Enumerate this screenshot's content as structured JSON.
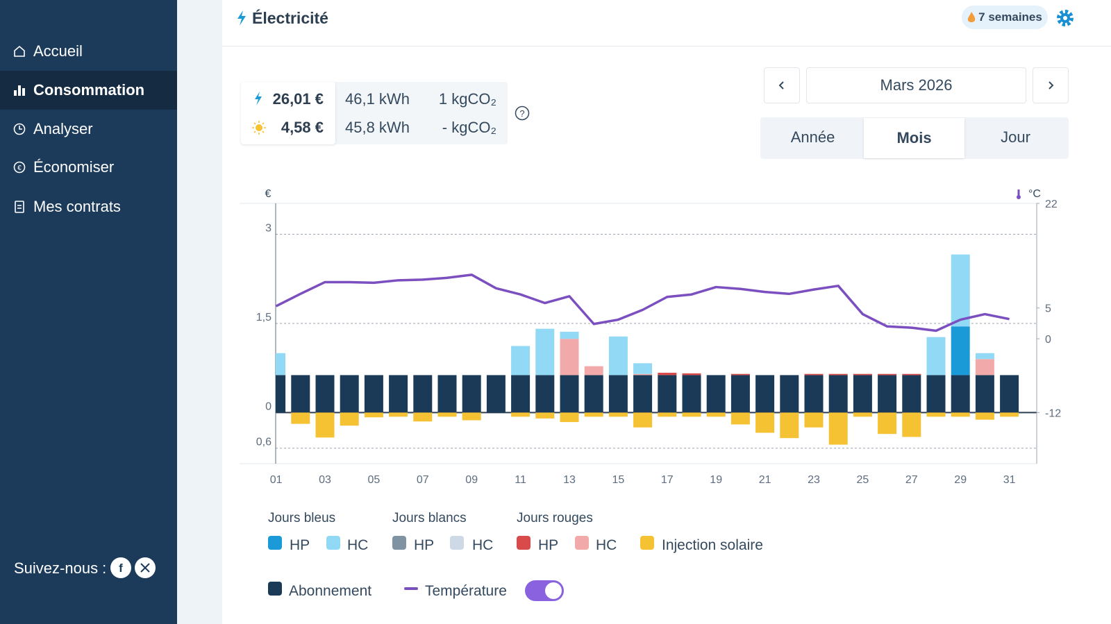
{
  "sidebar": {
    "nav": [
      "Accueil",
      "Consommation",
      "Analyser",
      "Économiser",
      "Mes contrats"
    ],
    "active": 1,
    "follow": "Suivez-nous :"
  },
  "header": {
    "title": "Électricité",
    "badge": "7 semaines"
  },
  "summary": {
    "rows": [
      {
        "cost": "26,01 €",
        "energy": "46,1 kWh",
        "co2": "1 kgCO₂"
      },
      {
        "cost": "4,58 €",
        "energy": "45,8 kWh",
        "co2": "- kgCO₂"
      }
    ]
  },
  "period": {
    "label": "Mars 2026",
    "tabs": [
      "Année",
      "Mois",
      "Jour"
    ],
    "active_tab": 1
  },
  "chart_data": {
    "type": "bar",
    "stacked": true,
    "ylabel": "€",
    "y2label": "°C",
    "categories": [
      "01",
      null,
      "03",
      null,
      "05",
      null,
      "07",
      null,
      "09",
      null,
      "11",
      null,
      "13",
      null,
      "15",
      null,
      "17",
      null,
      "19",
      null,
      "21",
      null,
      "23",
      null,
      "25",
      null,
      "27",
      null,
      "29",
      null,
      "31"
    ],
    "ylim": [
      -0.86,
      3.52
    ],
    "yticks": [
      3,
      {
        "value": 1.5,
        "label": "1,5"
      },
      0,
      {
        "value": -0.6,
        "label": "0,6"
      }
    ],
    "y2lim": [
      -20.3,
      22
    ],
    "y2ticks": [
      22,
      5,
      0,
      -12
    ],
    "groups": [
      {
        "name": "Jours bleus",
        "series": [
          {
            "name": "HP",
            "color": "#1a9ad6",
            "values": [
              0,
              0,
              0,
              0,
              0,
              0,
              0,
              0,
              0,
              0,
              0,
              0,
              0,
              0,
              0,
              0,
              0,
              0,
              0,
              0,
              0,
              0,
              0,
              0,
              0,
              0,
              0,
              0,
              0.82,
              0,
              0
            ]
          },
          {
            "name": "HC",
            "color": "#92d9f5",
            "values": [
              0.37,
              0,
              0,
              0,
              0,
              0,
              0,
              0,
              0,
              0,
              0.49,
              0.78,
              0.12,
              0,
              0.65,
              0.18,
              0,
              0,
              0,
              0,
              0,
              0,
              0,
              0,
              0,
              0,
              0,
              0.64,
              1.21,
              0.1,
              0
            ]
          }
        ]
      },
      {
        "name": "Jours blancs",
        "series": [
          {
            "name": "HP",
            "color": "#7f93a3",
            "values": [
              0,
              0,
              0,
              0,
              0,
              0,
              0,
              0,
              0,
              0,
              0,
              0,
              0,
              0,
              0,
              0,
              0,
              0,
              0,
              0,
              0,
              0,
              0,
              0,
              0,
              0,
              0,
              0,
              0,
              0,
              0
            ]
          },
          {
            "name": "HC",
            "color": "#cdd9e4",
            "values": [
              0,
              0,
              0,
              0,
              0,
              0,
              0,
              0,
              0,
              0,
              0,
              0,
              0,
              0,
              0,
              0,
              0,
              0,
              0,
              0,
              0,
              0,
              0,
              0,
              0,
              0,
              0,
              0,
              0,
              0,
              0
            ]
          }
        ]
      },
      {
        "name": "Jours rouges",
        "series": [
          {
            "name": "HP",
            "color": "#d94b4b",
            "values": [
              0,
              0,
              0,
              0,
              0,
              0,
              0,
              0,
              0,
              0,
              0,
              0,
              0,
              0,
              0,
              0,
              0.04,
              0.03,
              0,
              0.02,
              0,
              0,
              0.02,
              0.02,
              0.02,
              0.02,
              0.02,
              0,
              0,
              0,
              0
            ]
          },
          {
            "name": "HC",
            "color": "#f2a9a9",
            "values": [
              0,
              0,
              0,
              0,
              0,
              0,
              0,
              0,
              0,
              0,
              0,
              0,
              0.61,
              0.15,
              0,
              0.02,
              0,
              0,
              0,
              0,
              0,
              0,
              0,
              0,
              0,
              0,
              0,
              0,
              0,
              0.27,
              0
            ]
          }
        ]
      }
    ],
    "series": [
      {
        "name": "Injection solaire",
        "color": "#f5c233",
        "values": [
          0,
          -0.19,
          -0.42,
          -0.22,
          -0.08,
          -0.07,
          -0.15,
          -0.07,
          -0.13,
          0,
          -0.07,
          -0.1,
          -0.16,
          -0.07,
          -0.07,
          -0.25,
          -0.07,
          -0.07,
          -0.07,
          -0.2,
          -0.34,
          -0.43,
          -0.25,
          -0.54,
          -0.07,
          -0.36,
          -0.41,
          -0.07,
          -0.07,
          -0.12,
          -0.07
        ]
      },
      {
        "name": "Abonnement",
        "color": "#1b3a57",
        "values": [
          0.63,
          0.63,
          0.63,
          0.63,
          0.63,
          0.63,
          0.63,
          0.63,
          0.63,
          0.63,
          0.63,
          0.63,
          0.63,
          0.63,
          0.63,
          0.63,
          0.63,
          0.63,
          0.63,
          0.63,
          0.63,
          0.63,
          0.63,
          0.63,
          0.63,
          0.63,
          0.63,
          0.63,
          0.63,
          0.63,
          0.63
        ]
      },
      {
        "name": "Température",
        "color": "#7b4fc0",
        "type": "line",
        "axis": "y2",
        "values": [
          5.3,
          7.3,
          9.2,
          9.2,
          9.1,
          9.5,
          9.6,
          9.9,
          10.4,
          8.2,
          7.2,
          5.8,
          6.9,
          2.4,
          3.1,
          4.7,
          6.8,
          7.2,
          8.4,
          8.1,
          7.6,
          7.3,
          8.0,
          8.6,
          4.0,
          2.0,
          1.8,
          1.3,
          3.1,
          4.0,
          3.2
        ]
      }
    ]
  }
}
